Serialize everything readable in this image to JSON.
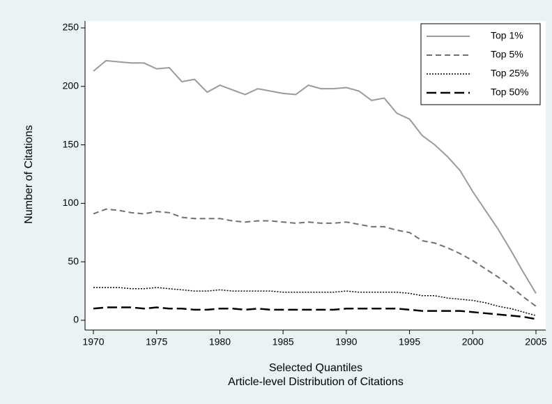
{
  "chart_data": {
    "type": "line",
    "xlabel": "Selected Quantiles",
    "caption": "Article-level Distribution of Citations",
    "ylabel": "Number of Citations",
    "x": [
      1970,
      1971,
      1972,
      1973,
      1974,
      1975,
      1976,
      1977,
      1978,
      1979,
      1980,
      1981,
      1982,
      1983,
      1984,
      1985,
      1986,
      1987,
      1988,
      1989,
      1990,
      1991,
      1992,
      1993,
      1994,
      1995,
      1996,
      1997,
      1998,
      1999,
      2000,
      2001,
      2002,
      2003,
      2004,
      2005
    ],
    "xlim": [
      1970,
      2005
    ],
    "xticks": [
      1970,
      1975,
      1980,
      1985,
      1990,
      1995,
      2000,
      2005
    ],
    "ylim": [
      0,
      250
    ],
    "yticks": [
      0,
      50,
      100,
      150,
      200,
      250
    ],
    "legend": "top-right",
    "series": [
      {
        "name": "Top 1%",
        "color": "#9a9a9a",
        "dash": "solid",
        "width": 2,
        "values": [
          213,
          222,
          221,
          220,
          220,
          215,
          216,
          204,
          206,
          195,
          201,
          197,
          193,
          198,
          196,
          194,
          193,
          201,
          198,
          198,
          199,
          196,
          188,
          190,
          177,
          172,
          158,
          150,
          140,
          128,
          110,
          94,
          78,
          60,
          41,
          23
        ]
      },
      {
        "name": "Top 5%",
        "color": "#707070",
        "dash": "dashed",
        "width": 2,
        "values": [
          91,
          95,
          94,
          92,
          91,
          93,
          92,
          88,
          87,
          87,
          87,
          85,
          84,
          85,
          85,
          84,
          83,
          84,
          83,
          83,
          84,
          82,
          80,
          80,
          77,
          75,
          68,
          66,
          62,
          57,
          51,
          44,
          37,
          29,
          20,
          12
        ]
      },
      {
        "name": "Top 25%",
        "color": "#000000",
        "dash": "dotted",
        "width": 1.5,
        "values": [
          28,
          28,
          28,
          27,
          27,
          28,
          27,
          26,
          25,
          25,
          26,
          25,
          25,
          25,
          25,
          24,
          24,
          24,
          24,
          24,
          25,
          24,
          24,
          24,
          24,
          23,
          21,
          21,
          19,
          18,
          17,
          15,
          12,
          10,
          7,
          4
        ]
      },
      {
        "name": "Top 50%",
        "color": "#000000",
        "dash": "longdash",
        "width": 2.5,
        "values": [
          10,
          11,
          11,
          11,
          10,
          11,
          10,
          10,
          9,
          9,
          10,
          10,
          9,
          10,
          9,
          9,
          9,
          9,
          9,
          9,
          10,
          10,
          10,
          10,
          10,
          9,
          8,
          8,
          8,
          8,
          7,
          6,
          5,
          4,
          3,
          1
        ]
      }
    ]
  }
}
